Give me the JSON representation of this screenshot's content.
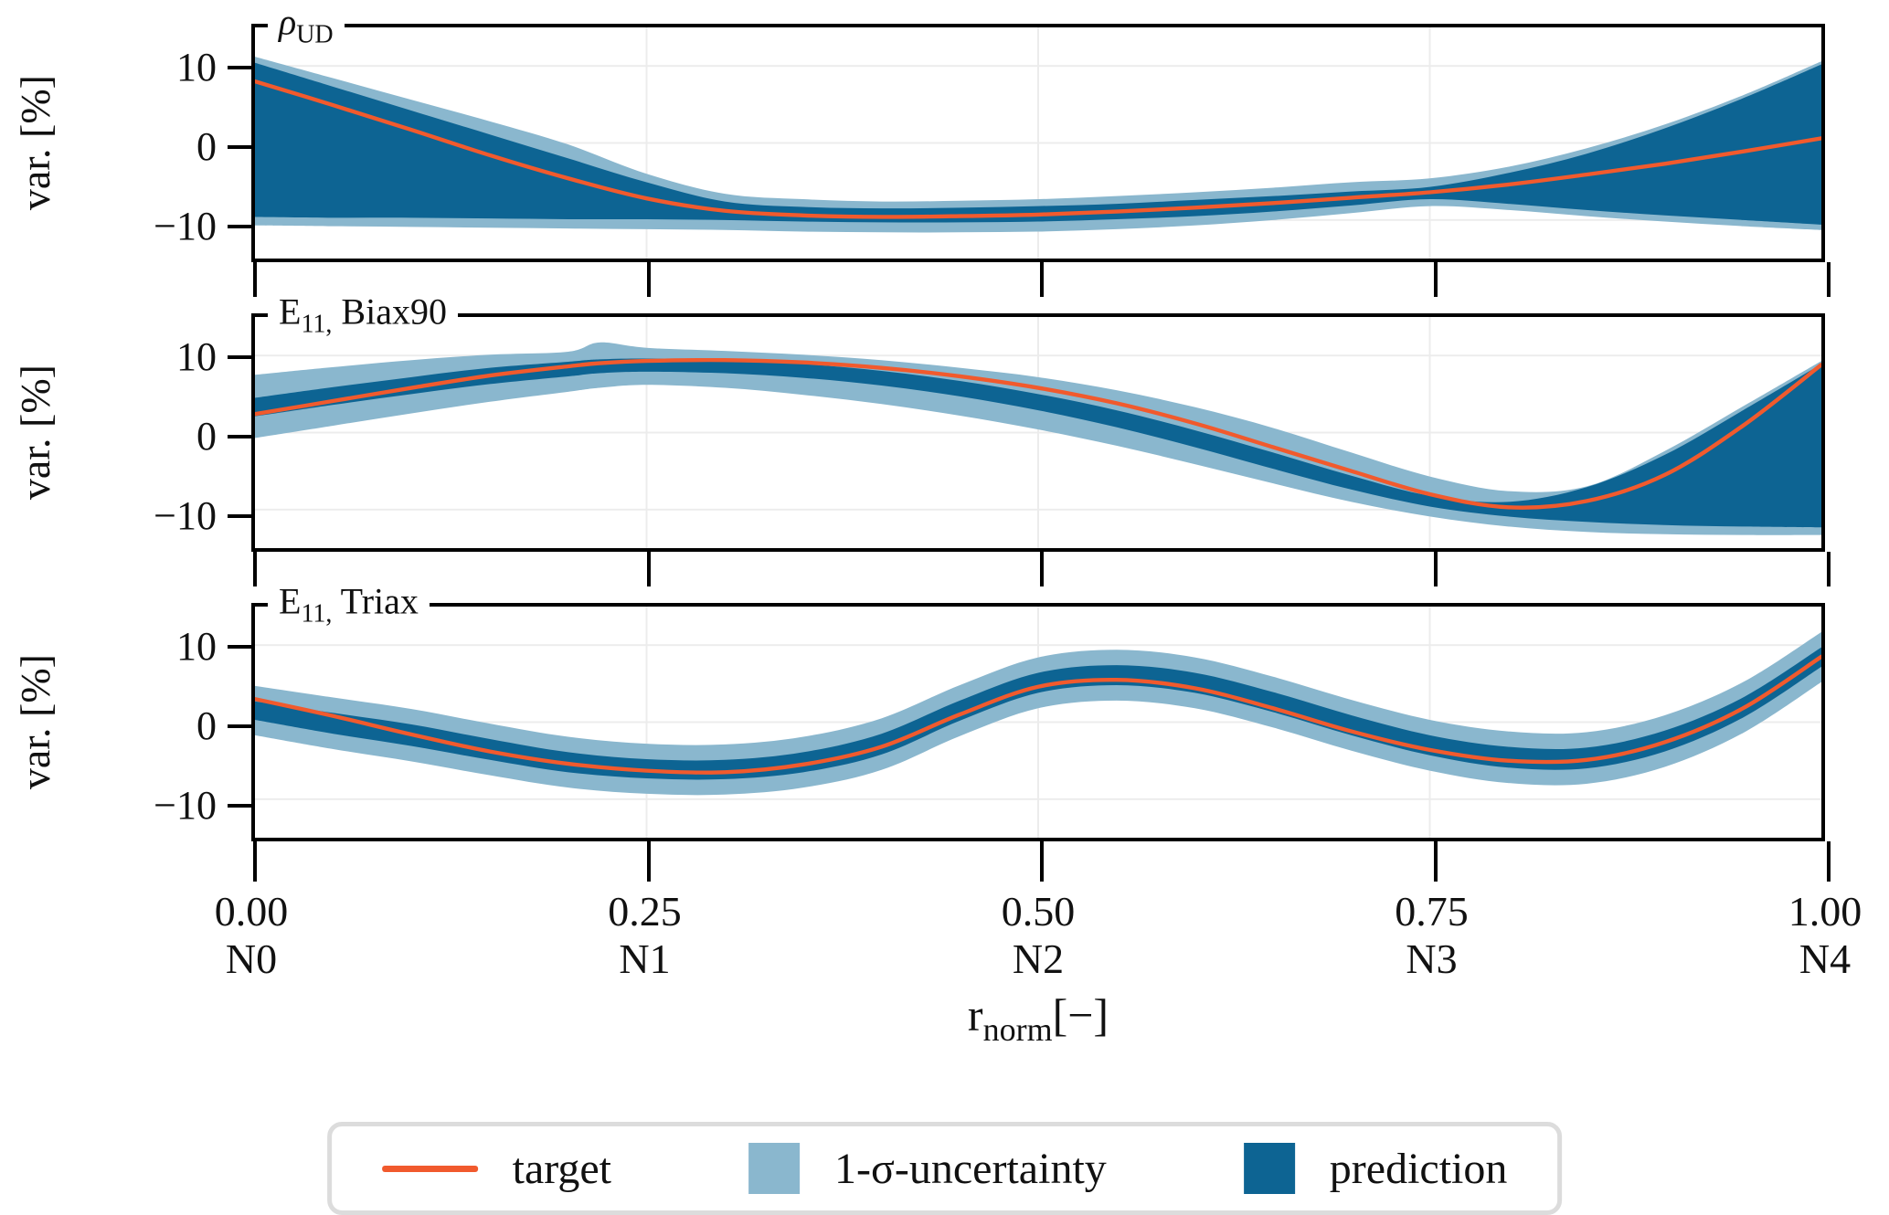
{
  "figure": {
    "ylabel": "var. [%]",
    "xlabel": {
      "main": "r",
      "sub": "norm",
      "unit": "[−]"
    },
    "colors": {
      "target": "#f15a2d",
      "uncertainty": "#8ab7ce",
      "prediction": "#0d6493",
      "grid": "#ececec",
      "spine": "#000000",
      "legend_border": "#dcdcdc"
    },
    "x_ticks": [
      {
        "pos": 0.0,
        "label": "0.00",
        "node": "N0"
      },
      {
        "pos": 0.25,
        "label": "0.25",
        "node": "N1"
      },
      {
        "pos": 0.5,
        "label": "0.50",
        "node": "N2"
      },
      {
        "pos": 0.75,
        "label": "0.75",
        "node": "N3"
      },
      {
        "pos": 1.0,
        "label": "1.00",
        "node": "N4"
      }
    ]
  },
  "legend": {
    "items": [
      {
        "type": "line",
        "color_key": "target",
        "label": "target"
      },
      {
        "type": "patch",
        "color_key": "uncertainty",
        "label": "1-σ-uncertainty"
      },
      {
        "type": "patch",
        "color_key": "prediction",
        "label": "prediction"
      }
    ]
  },
  "chart_data": [
    {
      "type": "line+band",
      "title": {
        "main": "ρ",
        "sub": "UD",
        "suffix": ""
      },
      "xlabel": "r_norm [-]",
      "ylabel": "var. [%]",
      "ylim": [
        -15,
        15
      ],
      "yticks": [
        10,
        0,
        -10
      ],
      "x": [
        0,
        0.05,
        0.1,
        0.15,
        0.2,
        0.25,
        0.3,
        0.35,
        0.4,
        0.45,
        0.5,
        0.55,
        0.6,
        0.65,
        0.7,
        0.75,
        0.8,
        0.85,
        0.9,
        0.95,
        1
      ],
      "series": {
        "target": [
          8,
          4.9,
          1.7,
          -1.6,
          -4.6,
          -7.2,
          -8.8,
          -9.4,
          -9.6,
          -9.5,
          -9.3,
          -8.9,
          -8.4,
          -7.8,
          -7.1,
          -6.4,
          -5.4,
          -4.1,
          -2.7,
          -1.1,
          0.6
        ],
        "prediction_high": [
          10.4,
          7.3,
          4.2,
          1.1,
          -2.0,
          -5.1,
          -7.6,
          -8.3,
          -8.5,
          -8.4,
          -8.2,
          -7.9,
          -7.4,
          -6.9,
          -6.3,
          -5.7,
          -3.9,
          -1.4,
          1.9,
          5.8,
          10.2
        ],
        "prediction_low": [
          -9.6,
          -9.7,
          -9.7,
          -9.8,
          -9.9,
          -9.9,
          -10.0,
          -10.2,
          -10.3,
          -10.3,
          -10.2,
          -9.9,
          -9.5,
          -8.9,
          -8.1,
          -7.3,
          -7.9,
          -8.7,
          -9.4,
          -10.0,
          -10.6
        ],
        "uncertainty_high": [
          11.2,
          8.4,
          5.6,
          2.8,
          -0.2,
          -4.0,
          -6.6,
          -7.3,
          -7.6,
          -7.5,
          -7.3,
          -6.9,
          -6.4,
          -5.8,
          -5.1,
          -4.6,
          -3.1,
          -0.7,
          2.4,
          6.2,
          10.6
        ],
        "uncertainty_low": [
          -10.7,
          -10.8,
          -10.9,
          -11.0,
          -11.1,
          -11.2,
          -11.3,
          -11.5,
          -11.6,
          -11.6,
          -11.5,
          -11.2,
          -10.7,
          -10.0,
          -9.1,
          -8.2,
          -8.7,
          -9.5,
          -10.2,
          -10.8,
          -11.3
        ]
      }
    },
    {
      "type": "line+band",
      "title": {
        "main": "E",
        "sub": "11,",
        "suffix": " Biax90"
      },
      "xlabel": "r_norm [-]",
      "ylabel": "var. [%]",
      "ylim": [
        -15,
        15
      ],
      "yticks": [
        10,
        0,
        -10
      ],
      "x": [
        0,
        0.05,
        0.1,
        0.15,
        0.2,
        0.22,
        0.25,
        0.3,
        0.35,
        0.4,
        0.45,
        0.5,
        0.55,
        0.6,
        0.65,
        0.7,
        0.75,
        0.8,
        0.85,
        0.9,
        0.95,
        1
      ],
      "series": {
        "target": [
          2.4,
          4.1,
          5.8,
          7.4,
          8.6,
          9.0,
          9.3,
          9.4,
          9.1,
          8.4,
          7.3,
          5.8,
          3.8,
          1.2,
          -1.9,
          -5.0,
          -8.0,
          -9.7,
          -8.9,
          -5.5,
          0.9,
          8.8
        ],
        "prediction_high": [
          4.5,
          5.9,
          7.2,
          8.4,
          9.2,
          9.5,
          9.6,
          9.4,
          8.9,
          8.0,
          6.7,
          5.0,
          2.9,
          0.3,
          -2.6,
          -5.6,
          -8.2,
          -9.0,
          -7.1,
          -2.9,
          2.9,
          8.9
        ],
        "prediction_low": [
          2.1,
          3.6,
          5.0,
          6.3,
          7.3,
          7.7,
          7.9,
          7.7,
          7.1,
          6.1,
          4.7,
          2.9,
          0.7,
          -1.9,
          -4.7,
          -7.4,
          -9.6,
          -10.9,
          -11.6,
          -12.0,
          -12.2,
          -12.3
        ],
        "uncertainty_high": [
          7.5,
          8.5,
          9.4,
          10.1,
          10.5,
          11.7,
          11.0,
          10.6,
          10.1,
          9.4,
          8.4,
          7.2,
          5.5,
          3.3,
          0.6,
          -2.6,
          -5.7,
          -7.6,
          -7.0,
          -2.4,
          3.4,
          9.3
        ],
        "uncertainty_low": [
          -0.7,
          0.9,
          2.5,
          4.0,
          5.3,
          5.8,
          6.2,
          5.8,
          4.9,
          3.7,
          2.2,
          0.4,
          -1.7,
          -4.1,
          -6.6,
          -9.0,
          -10.9,
          -12.2,
          -12.9,
          -13.2,
          -13.3,
          -13.3
        ]
      }
    },
    {
      "type": "line+band",
      "title": {
        "main": "E",
        "sub": "11,",
        "suffix": " Triax"
      },
      "xlabel": "r_norm [-]",
      "ylabel": "var. [%]",
      "ylim": [
        -15,
        15
      ],
      "yticks": [
        10,
        0,
        -10
      ],
      "x": [
        0,
        0.05,
        0.1,
        0.15,
        0.2,
        0.25,
        0.3,
        0.35,
        0.4,
        0.45,
        0.5,
        0.55,
        0.6,
        0.65,
        0.7,
        0.75,
        0.8,
        0.85,
        0.9,
        0.95,
        1
      ],
      "series": {
        "target": [
          3.0,
          0.8,
          -1.6,
          -3.8,
          -5.4,
          -6.3,
          -6.5,
          -5.5,
          -3.2,
          1.0,
          4.6,
          5.5,
          4.4,
          1.8,
          -1.2,
          -3.6,
          -5.0,
          -4.9,
          -2.6,
          1.8,
          8.5
        ],
        "prediction_high": [
          2.7,
          1.2,
          -0.3,
          -2.2,
          -3.9,
          -4.8,
          -4.9,
          -3.9,
          -1.5,
          2.8,
          6.4,
          7.4,
          6.4,
          3.9,
          0.9,
          -1.7,
          -3.2,
          -3.3,
          -1.1,
          3.2,
          9.7
        ],
        "prediction_low": [
          0.3,
          -1.5,
          -3.1,
          -4.9,
          -6.5,
          -7.3,
          -7.4,
          -6.5,
          -4.2,
          0.2,
          3.8,
          4.8,
          3.8,
          1.3,
          -1.7,
          -4.3,
          -5.9,
          -6.0,
          -3.8,
          0.6,
          7.2
        ],
        "uncertainty_high": [
          4.7,
          3.2,
          1.7,
          -0.2,
          -1.9,
          -2.8,
          -2.9,
          -1.9,
          0.5,
          4.8,
          8.4,
          9.4,
          8.4,
          5.9,
          2.9,
          0.3,
          -1.2,
          -1.3,
          0.9,
          5.2,
          11.7
        ],
        "uncertainty_low": [
          -1.7,
          -3.5,
          -5.1,
          -6.9,
          -8.5,
          -9.3,
          -9.4,
          -8.5,
          -6.2,
          -1.8,
          1.8,
          2.8,
          1.8,
          -0.7,
          -3.7,
          -6.3,
          -7.9,
          -8.0,
          -5.8,
          -1.4,
          5.2
        ]
      }
    }
  ]
}
